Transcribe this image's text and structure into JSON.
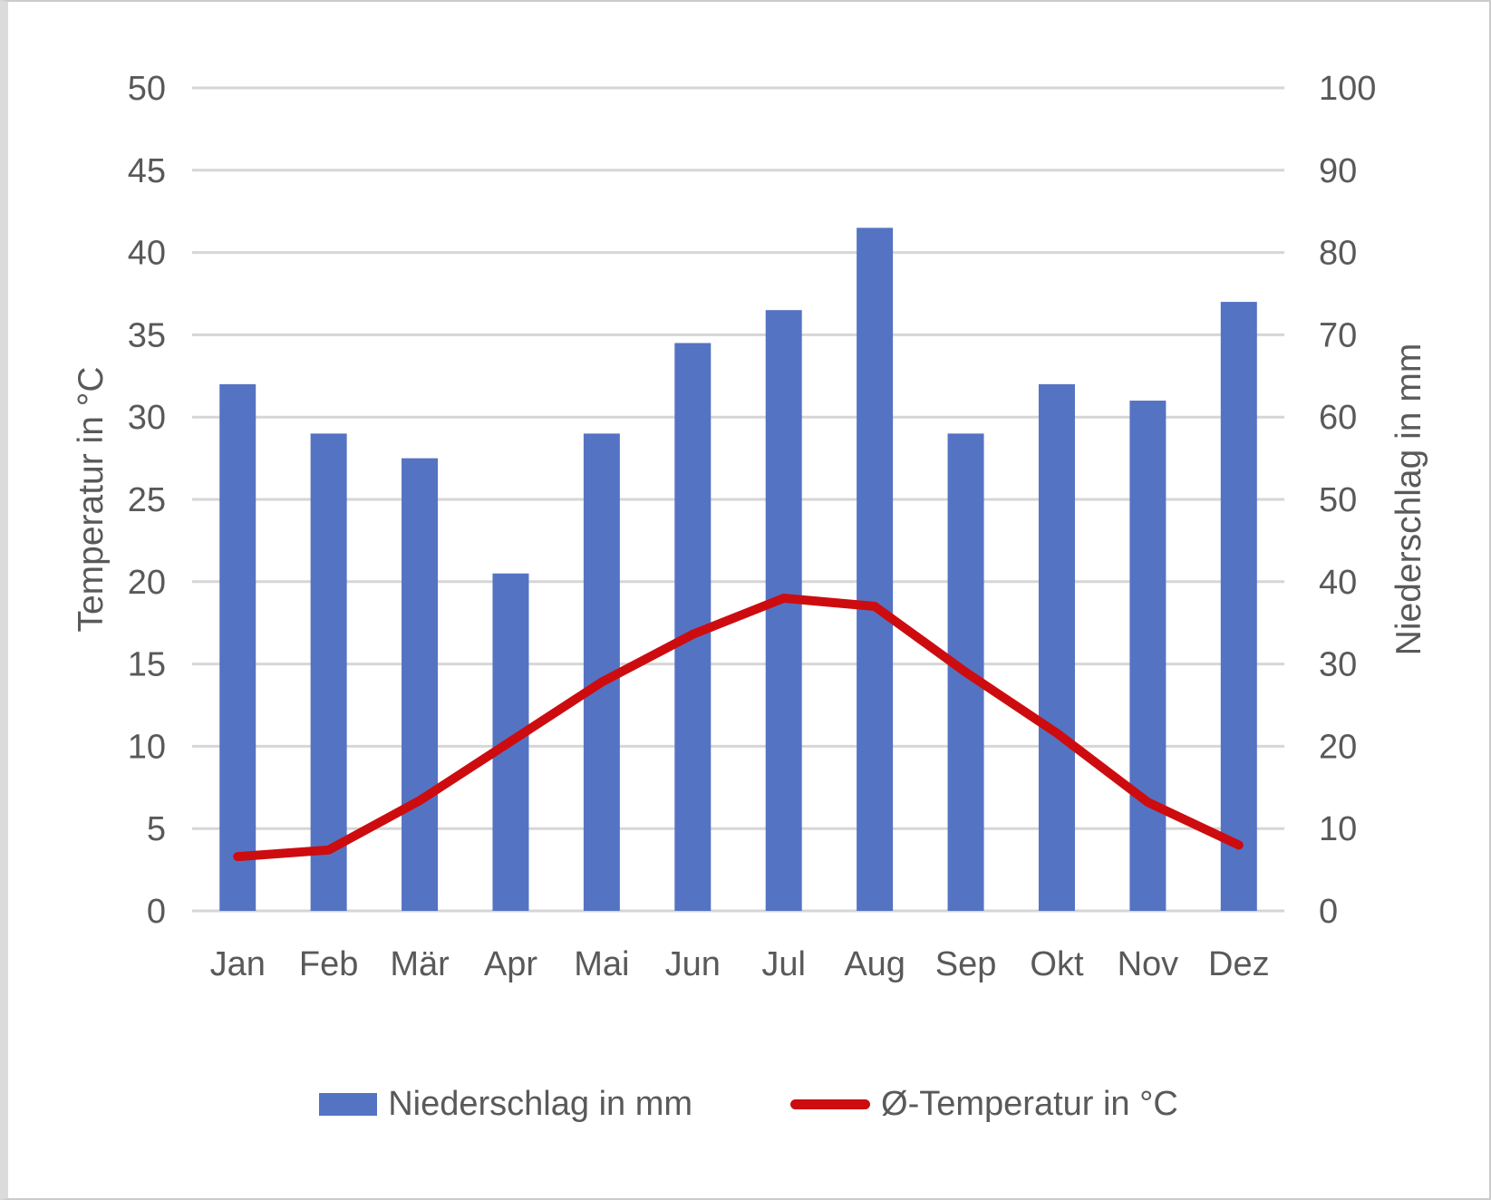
{
  "chart_data": {
    "type": "bar",
    "subtype": "combo-bar-line",
    "categories": [
      "Jan",
      "Feb",
      "Mär",
      "Apr",
      "Mai",
      "Jun",
      "Jul",
      "Aug",
      "Sep",
      "Okt",
      "Nov",
      "Dez"
    ],
    "series": [
      {
        "name": "Niederschlag in mm",
        "type": "bar",
        "axis": "right",
        "values": [
          64,
          58,
          55,
          41,
          58,
          69,
          73,
          83,
          58,
          64,
          62,
          74
        ]
      },
      {
        "name": "Ø-Temperatur in °C",
        "type": "line",
        "axis": "left",
        "values": [
          3.3,
          3.7,
          6.7,
          10.3,
          13.9,
          16.8,
          19,
          18.5,
          14.5,
          10.8,
          6.6,
          4
        ]
      }
    ],
    "left_axis": {
      "title": "Temperatur in °C",
      "min": 0,
      "max": 50,
      "step": 5,
      "ticks": [
        "0",
        "5",
        "10",
        "15",
        "20",
        "25",
        "30",
        "35",
        "40",
        "45",
        "50"
      ]
    },
    "right_axis": {
      "title": "Niederschlag in mm",
      "min": 0,
      "max": 100,
      "step": 10,
      "ticks": [
        "0",
        "10",
        "20",
        "30",
        "40",
        "50",
        "60",
        "70",
        "80",
        "90",
        "100"
      ]
    },
    "grid": true,
    "legend_position": "bottom"
  },
  "legend": {
    "items": [
      {
        "label": "Niederschlag in mm",
        "swatch": "bar"
      },
      {
        "label": "Ø-Temperatur in °C",
        "swatch": "line"
      }
    ]
  },
  "colors": {
    "bar": "#5573C3",
    "line": "#CD0C10",
    "grid": "#D6D6D6",
    "text": "#595959",
    "frame": "#CBCBCB",
    "left_edge_strip": "#DBDBDB",
    "background": "#FFFFFF"
  }
}
